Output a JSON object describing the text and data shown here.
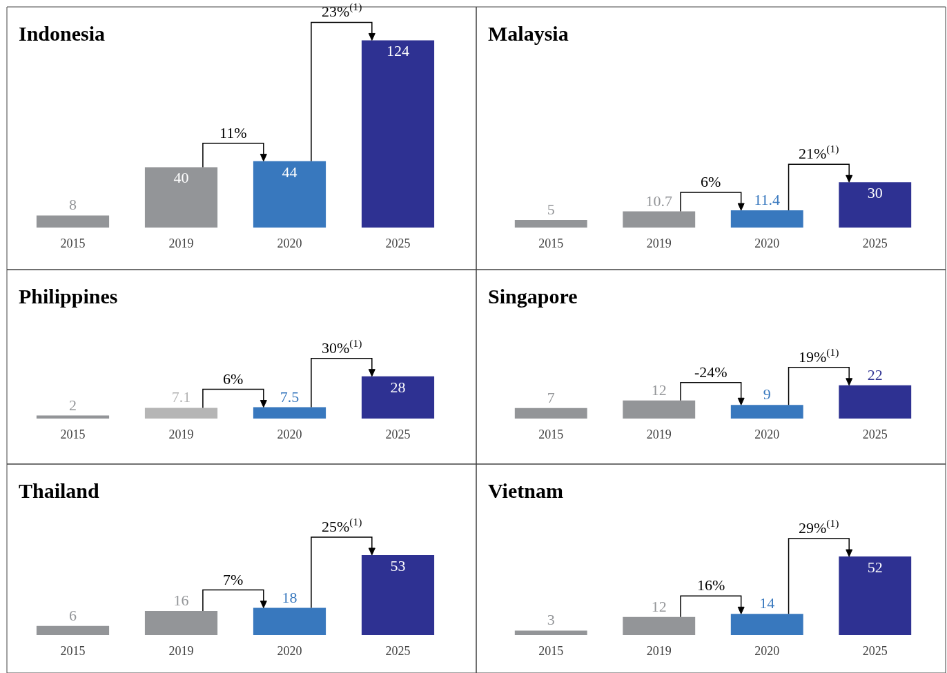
{
  "chart_data": [
    {
      "type": "bar",
      "title": "Indonesia",
      "categories": [
        "2015",
        "2019",
        "2020",
        "2025"
      ],
      "values": [
        8,
        40,
        44,
        124
      ],
      "colors": [
        "#939598",
        "#939598",
        "#3878be",
        "#2e3192"
      ],
      "data_labels": true,
      "annotations": [
        "11%",
        "23%$^{(1)}$"
      ]
    },
    {
      "type": "bar",
      "title": "Malaysia",
      "categories": [
        "2015",
        "2019",
        "2020",
        "2025"
      ],
      "values": [
        5,
        10.7,
        11.4,
        30
      ],
      "colors": [
        "#939598",
        "#939598",
        "#3878be",
        "#2e3192"
      ],
      "data_labels": true,
      "annotations": [
        "6%",
        "21%$^{(1)}$"
      ]
    },
    {
      "type": "bar",
      "title": "Philippines",
      "categories": [
        "2015",
        "2019",
        "2020",
        "2025"
      ],
      "values": [
        2,
        7.1,
        7.5,
        28
      ],
      "colors": [
        "#939598",
        "#b5b5b5",
        "#3878be",
        "#2e3192"
      ],
      "data_labels": true,
      "annotations": [
        "6%",
        "30%$^{(1)}$"
      ]
    },
    {
      "type": "bar",
      "title": "Singapore",
      "categories": [
        "2015",
        "2019",
        "2020",
        "2025"
      ],
      "values": [
        7,
        12,
        9,
        22
      ],
      "colors": [
        "#939598",
        "#939598",
        "#3878be",
        "#2e3192"
      ],
      "data_labels": true,
      "annotations": [
        "-24%",
        "19%$^{(1)}$"
      ]
    },
    {
      "type": "bar",
      "title": "Thailand",
      "categories": [
        "2015",
        "2019",
        "2020",
        "2025"
      ],
      "values": [
        6,
        16,
        18,
        53
      ],
      "colors": [
        "#939598",
        "#939598",
        "#3878be",
        "#2e3192"
      ],
      "data_labels": true,
      "annotations": [
        "7%",
        "25%$^{(1)}$"
      ]
    },
    {
      "type": "bar",
      "title": "Vietnam",
      "categories": [
        "2015",
        "2019",
        "2020",
        "2025"
      ],
      "values": [
        3,
        12,
        14,
        52
      ],
      "colors": [
        "#939598",
        "#939598",
        "#3878be",
        "#2e3192"
      ],
      "data_labels": true,
      "annotations": [
        "16%",
        "29%$^{(1)}$"
      ]
    }
  ]
}
